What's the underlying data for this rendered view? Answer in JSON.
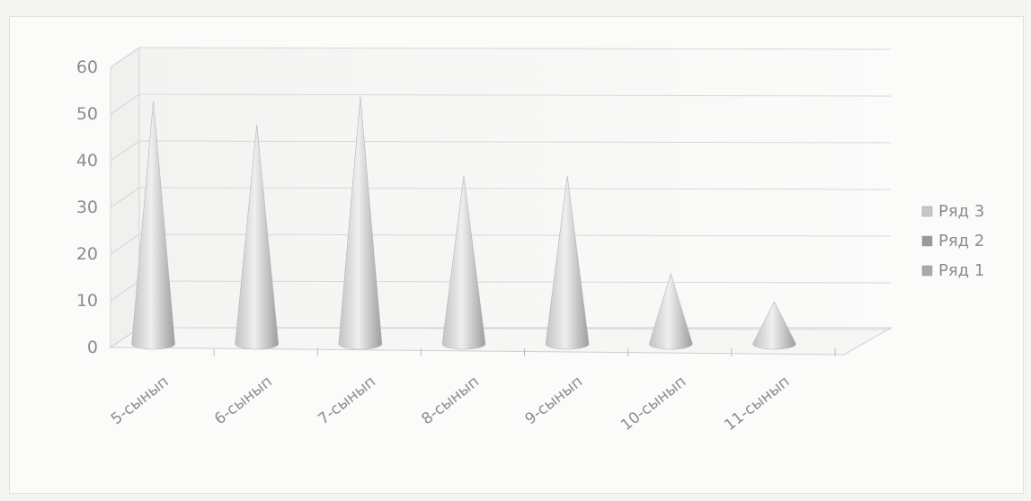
{
  "chart_data": {
    "type": "bar",
    "style": "3d-cone",
    "categories": [
      "5-сынып",
      "6-сынып",
      "7-сынып",
      "8-сынып",
      "9-сынып",
      "10-сынып",
      "11-сынып"
    ],
    "series": [
      {
        "name": "Ряд 1",
        "values": [
          52,
          47,
          53,
          36,
          36,
          15,
          9
        ],
        "color": "#a9a9a9"
      },
      {
        "name": "Ряд 2",
        "values": [
          null,
          null,
          null,
          null,
          null,
          null,
          null
        ],
        "color": "#9a9a9a"
      },
      {
        "name": "Ряд 3",
        "values": [
          null,
          null,
          null,
          null,
          null,
          null,
          null
        ],
        "color": "#c8c8c8"
      }
    ],
    "yticks": [
      "0",
      "10",
      "20",
      "30",
      "40",
      "50",
      "60"
    ],
    "ylim": [
      0,
      60
    ],
    "grid": true,
    "legend": "right"
  }
}
